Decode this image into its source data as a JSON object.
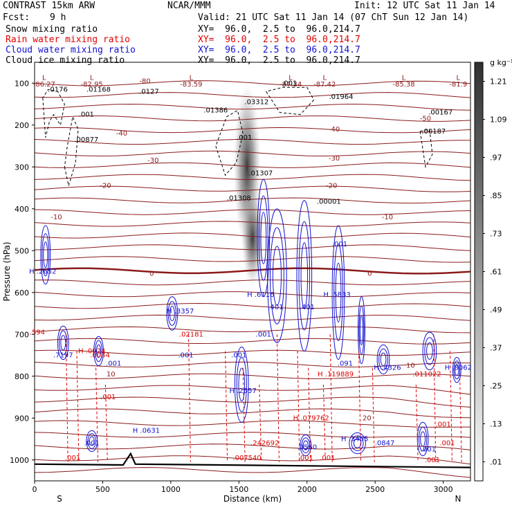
{
  "header": {
    "model": "CONTRAST 15km ARW",
    "center": "NCAR/MMM",
    "init": "Init: 12 UTC Sat 11 Jan 14",
    "fcst_label": "Fcst:",
    "fcst_value": "9 h",
    "valid": "Valid: 21 UTC Sat 11 Jan 14 (07 ChT Sun 12 Jan 14)"
  },
  "legend": [
    {
      "label": "Snow mixing ratio",
      "xy": "XY=  96.0,  2.5 to  96.0,214.7",
      "color": "#000000"
    },
    {
      "label": "Rain water mixing ratio",
      "xy": "XY=  96.0,  2.5 to  96.0,214.7",
      "color": "#e00000"
    },
    {
      "label": "Cloud water mixing ratio",
      "xy": "XY=  96.0,  2.5 to  96.0,214.7",
      "color": "#1010d0"
    },
    {
      "label": "Cloud ice mixing ratio",
      "xy": "XY=  96.0,  2.5 to  96.0,214.7",
      "color": "#000000"
    }
  ],
  "chart_data": {
    "type": "contour cross-section",
    "xlabel": "Distance (km)",
    "ylabel": "Pressure (hPa)",
    "xlim": [
      0,
      3200
    ],
    "ylim": [
      1050,
      50
    ],
    "x_ticks": [
      "0",
      "500",
      "1000",
      "1500",
      "2000",
      "2500",
      "3000"
    ],
    "y_ticks": [
      "100",
      "200",
      "300",
      "400",
      "500",
      "600",
      "700",
      "800",
      "900",
      "1000"
    ],
    "x_ends": [
      "S",
      "N"
    ],
    "colorbar": {
      "unit": "g kg⁻¹",
      "labels": [
        "1.21",
        "1.09",
        ".97",
        ".85",
        ".73",
        ".61",
        ".49",
        ".37",
        ".25",
        ".13",
        ".01"
      ],
      "label_values": [
        1.21,
        1.09,
        0.97,
        0.85,
        0.73,
        0.61,
        0.49,
        0.37,
        0.25,
        0.13,
        0.01
      ]
    },
    "temperature_contours": {
      "color": "#8b1a1a",
      "levels": [
        {
          "value": "-80",
          "x": 810,
          "p": 100
        },
        {
          "value": "-50",
          "x": 2870,
          "p": 190
        },
        {
          "value": "-40",
          "x": 640,
          "p": 225
        },
        {
          "value": "-40",
          "x": 2200,
          "p": 215
        },
        {
          "value": "-30",
          "x": 870,
          "p": 290
        },
        {
          "value": "-30",
          "x": 2200,
          "p": 285
        },
        {
          "value": "-20",
          "x": 520,
          "p": 350
        },
        {
          "value": "-20",
          "x": 2180,
          "p": 350
        },
        {
          "value": "-10",
          "x": 160,
          "p": 425
        },
        {
          "value": "-10",
          "x": 2590,
          "p": 425
        },
        {
          "value": "0",
          "x": 860,
          "p": 560
        },
        {
          "value": "0",
          "x": 2460,
          "p": 560
        },
        {
          "value": "10",
          "x": 560,
          "p": 800
        },
        {
          "value": "10",
          "x": 2760,
          "p": 780
        },
        {
          "value": "20",
          "x": 2440,
          "p": 905
        }
      ]
    },
    "extrema_labels": [
      {
        "kind": "L",
        "value": "-86.27",
        "x": 70,
        "p": 100
      },
      {
        "kind": "L",
        "value": "-82.95",
        "x": 420,
        "p": 100
      },
      {
        "kind": "L",
        "value": "-83.59",
        "x": 1150,
        "p": 100
      },
      {
        "kind": "L",
        "value": "-87.34",
        "x": 1880,
        "p": 100
      },
      {
        "kind": "L",
        "value": "-87.42",
        "x": 2130,
        "p": 100
      },
      {
        "kind": "L",
        "value": "-85.38",
        "x": 2710,
        "p": 100
      },
      {
        "kind": "L",
        "value": "-81.9",
        "x": 3110,
        "p": 100
      }
    ],
    "ice_labels": [
      {
        "value": ".0176",
        "x": 170,
        "p": 120
      },
      {
        "value": ".01168",
        "x": 470,
        "p": 120
      },
      {
        "value": ".0127",
        "x": 840,
        "p": 125
      },
      {
        "value": ".001",
        "x": 1870,
        "p": 105
      },
      {
        "value": ".03312",
        "x": 1630,
        "p": 150
      },
      {
        "value": ".01964",
        "x": 2250,
        "p": 138
      },
      {
        "value": ".01386",
        "x": 1330,
        "p": 170
      },
      {
        "value": ".00167",
        "x": 2980,
        "p": 175
      },
      {
        "value": ".001",
        "x": 380,
        "p": 180
      },
      {
        "value": ".00877",
        "x": 380,
        "p": 240
      },
      {
        "value": ".00187",
        "x": 2930,
        "p": 220
      },
      {
        "value": ".001",
        "x": 1540,
        "p": 235
      },
      {
        "value": ".01307",
        "x": 1660,
        "p": 320
      },
      {
        "value": ".01308",
        "x": 1500,
        "p": 380
      },
      {
        "value": ".00001",
        "x": 2160,
        "p": 388
      }
    ],
    "cloud_water_labels": [
      {
        "value": "H .2652",
        "x": 60,
        "p": 555
      },
      {
        "value": "H .6116",
        "x": 1660,
        "p": 610
      },
      {
        "value": ".401",
        "x": 1770,
        "p": 640
      },
      {
        "value": ".401",
        "x": 2000,
        "p": 640
      },
      {
        "value": "H .5833",
        "x": 2220,
        "p": 610
      },
      {
        "value": ".001",
        "x": 2240,
        "p": 490
      },
      {
        "value": "H .3357",
        "x": 1070,
        "p": 650
      },
      {
        "value": ".001",
        "x": 1110,
        "p": 755
      },
      {
        "value": ".001",
        "x": 1500,
        "p": 755
      },
      {
        "value": ".001",
        "x": 1680,
        "p": 705
      },
      {
        "value": ".7197",
        "x": 210,
        "p": 755
      },
      {
        "value": ".001",
        "x": 580,
        "p": 775
      },
      {
        "value": "H .2657",
        "x": 1530,
        "p": 840
      },
      {
        "value": ".091",
        "x": 2280,
        "p": 775
      },
      {
        "value": "H .4326",
        "x": 2590,
        "p": 785
      },
      {
        "value": "H .8062",
        "x": 3110,
        "p": 785
      },
      {
        "value": "H .0631",
        "x": 820,
        "p": 935
      },
      {
        "value": ".001",
        "x": 420,
        "p": 965
      },
      {
        "value": ".0560",
        "x": 2000,
        "p": 975
      },
      {
        "value": "H .3405",
        "x": 2350,
        "p": 955
      },
      {
        "value": ".0847",
        "x": 2570,
        "p": 965
      },
      {
        "value": ".001",
        "x": 2890,
        "p": 980
      }
    ],
    "rain_labels": [
      {
        "value": ".594",
        "x": 20,
        "p": 700
      },
      {
        "value": "H .0024",
        "x": 420,
        "p": 745
      },
      {
        "value": ".0034",
        "x": 480,
        "p": 755
      },
      {
        "value": ".02181",
        "x": 1150,
        "p": 705
      },
      {
        "value": ".001",
        "x": 540,
        "p": 855
      },
      {
        "value": "H .119889",
        "x": 2210,
        "p": 800
      },
      {
        "value": ".011022",
        "x": 2880,
        "p": 800
      },
      {
        "value": "H .079762",
        "x": 2030,
        "p": 905
      },
      {
        "value": ".242692",
        "x": 1690,
        "p": 965
      },
      {
        "value": ".001",
        "x": 3000,
        "p": 920
      },
      {
        "value": ".001",
        "x": 3030,
        "p": 965
      },
      {
        "value": ".001",
        "x": 280,
        "p": 1000
      },
      {
        "value": ".007540",
        "x": 1560,
        "p": 1000
      },
      {
        "value": ".001",
        "x": 1990,
        "p": 1000
      },
      {
        "value": ".001",
        "x": 2150,
        "p": 1000
      },
      {
        "value": ".001",
        "x": 2920,
        "p": 1005
      }
    ]
  }
}
